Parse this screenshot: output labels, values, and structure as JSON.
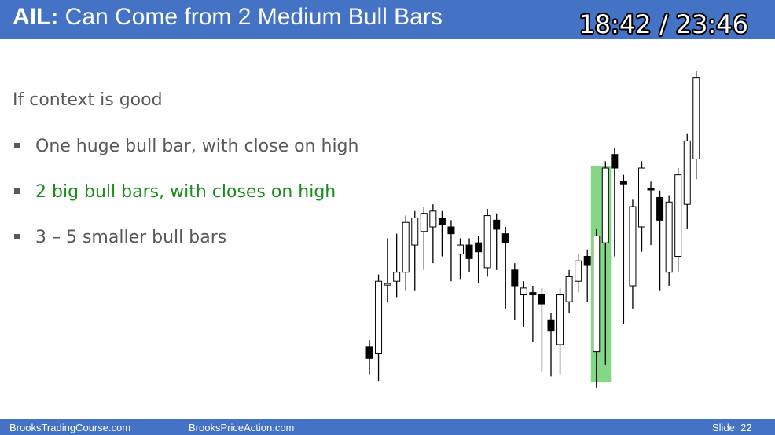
{
  "header": {
    "title_prefix": "AIL:",
    "title_text": "Can Come from 2 Medium Bull Bars",
    "timer": "18:42 / 23:46"
  },
  "content": {
    "context_line": "If context is good",
    "bullets": [
      {
        "text": "One huge bull bar, with close on high",
        "highlight": false
      },
      {
        "text": "2 big bull bars, with closes on high",
        "highlight": true
      },
      {
        "text": "3 – 5 smaller bull bars",
        "highlight": false
      }
    ]
  },
  "colors": {
    "header_bg": "#4472c4",
    "highlight_text": "#1a8c1a",
    "highlight_box": "#5cc85c"
  },
  "chart_data": {
    "type": "candlestick",
    "title": "",
    "grid": false,
    "price_range": [
      0,
      100
    ],
    "highlight_bars": [
      25,
      26
    ],
    "bars": [
      {
        "o": 10,
        "h": 12,
        "l": 6,
        "c": 15,
        "bull": false
      },
      {
        "o": 12,
        "h": 22,
        "l": 3,
        "c": 44,
        "bull": true
      },
      {
        "o": 43,
        "h": 60,
        "l": 38,
        "c": 43,
        "bull": true
      },
      {
        "o": 44,
        "h": 62,
        "l": 40,
        "c": 48,
        "bull": true
      },
      {
        "o": 48,
        "h": 58,
        "l": 43,
        "c": 70,
        "bull": true
      },
      {
        "o": 60,
        "h": 66,
        "l": 43,
        "c": 72,
        "bull": true
      },
      {
        "o": 66,
        "h": 69,
        "l": 52,
        "c": 74,
        "bull": true
      },
      {
        "o": 68,
        "h": 69,
        "l": 55,
        "c": 75,
        "bull": true
      },
      {
        "o": 69,
        "h": 64,
        "l": 58,
        "c": 72,
        "bull": false
      },
      {
        "o": 65,
        "h": 54,
        "l": 47,
        "c": 68,
        "bull": false
      },
      {
        "o": 56,
        "h": 55,
        "l": 48,
        "c": 60,
        "bull": true
      },
      {
        "o": 54,
        "h": 56,
        "l": 51,
        "c": 60,
        "bull": false
      },
      {
        "o": 57,
        "h": 50,
        "l": 46,
        "c": 61,
        "bull": false
      },
      {
        "o": 50,
        "h": 69,
        "l": 49,
        "c": 73,
        "bull": true
      },
      {
        "o": 67,
        "h": 57,
        "l": 52,
        "c": 71,
        "bull": false
      },
      {
        "o": 61,
        "h": 44,
        "l": 35,
        "c": 65,
        "bull": false
      },
      {
        "o": 42,
        "h": 43,
        "l": 30,
        "c": 49,
        "bull": false
      },
      {
        "o": 38,
        "h": 35,
        "l": 27,
        "c": 41,
        "bull": true
      },
      {
        "o": 39,
        "h": 34,
        "l": 20,
        "c": 38,
        "bull": false
      },
      {
        "o": 34,
        "h": 22,
        "l": 7,
        "c": 38,
        "bull": false
      },
      {
        "o": 22,
        "h": 14,
        "l": 5,
        "c": 27,
        "bull": false
      },
      {
        "o": 16,
        "h": 37,
        "l": 6,
        "c": 38,
        "bull": true
      },
      {
        "o": 35,
        "h": 42,
        "l": 33,
        "c": 46,
        "bull": true
      },
      {
        "o": 44,
        "h": 52,
        "l": 42,
        "c": 53,
        "bull": true
      },
      {
        "o": 51,
        "h": 42,
        "l": 38,
        "c": 55,
        "bull": false
      },
      {
        "o": 13,
        "h": 61,
        "l": 0,
        "c": 64,
        "bull": true
      },
      {
        "o": 61,
        "h": 94,
        "l": 10,
        "c": 94,
        "bull": true
      },
      {
        "o": 94,
        "h": 86,
        "l": 58,
        "c": 100,
        "bull": false
      },
      {
        "o": 87,
        "h": 41,
        "l": 28,
        "c": 88,
        "bull": false
      },
      {
        "o": 42,
        "h": 71,
        "l": 35,
        "c": 77,
        "bull": true
      },
      {
        "o": 68,
        "h": 86,
        "l": 60,
        "c": 94,
        "bull": true
      },
      {
        "o": 85,
        "h": 71,
        "l": 63,
        "c": 85,
        "bull": false
      },
      {
        "o": 71,
        "h": 49,
        "l": 43,
        "c": 81,
        "bull": false
      },
      {
        "o": 48,
        "h": 58,
        "l": 45,
        "c": 79,
        "bull": true
      },
      {
        "o": 55,
        "h": 78,
        "l": 51,
        "c": 91,
        "bull": true
      },
      {
        "o": 78,
        "h": 98,
        "l": 70,
        "c": 106,
        "bull": true
      },
      {
        "o": 98,
        "h": 121,
        "l": 92,
        "c": 134,
        "bull": true
      }
    ]
  }
}
